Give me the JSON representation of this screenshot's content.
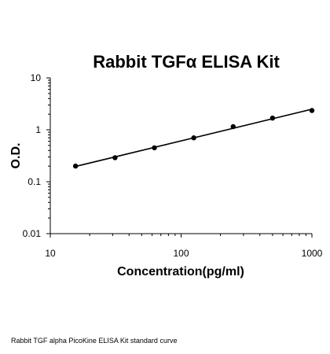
{
  "chart_data": {
    "type": "scatter",
    "title": "Rabbit TGFα ELISA Kit",
    "xlabel": "Concentration(pg/ml)",
    "ylabel": "O.D.",
    "xscale": "log",
    "yscale": "log",
    "xlim": [
      10,
      1000
    ],
    "ylim": [
      0.01,
      10
    ],
    "x_ticks": [
      "10",
      "100",
      "1000"
    ],
    "y_ticks": [
      "0.01",
      "0.1",
      "1",
      "10"
    ],
    "grid": false,
    "legend": "none",
    "series": [
      {
        "x": [
          15.6,
          31.25,
          62.5,
          125,
          250,
          500,
          1000
        ],
        "y": [
          0.2,
          0.29,
          0.45,
          0.7,
          1.15,
          1.68,
          2.35
        ],
        "markers": true,
        "fit_line": true
      }
    ]
  },
  "caption": "Rabbit TGF alpha PicoKine ELISA Kit standard curve"
}
